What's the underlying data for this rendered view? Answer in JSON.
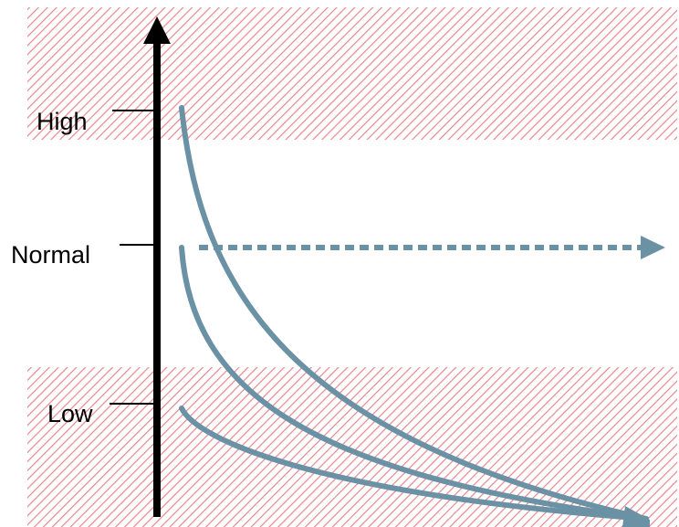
{
  "diagram": {
    "levels": [
      {
        "id": "high",
        "label": "High"
      },
      {
        "id": "normal",
        "label": "Normal"
      },
      {
        "id": "low",
        "label": "Low"
      }
    ],
    "colors": {
      "hatch": "#e8868f",
      "curve": "#6b91a5",
      "axis": "#000000"
    },
    "bands": {
      "upper": "hatched-red",
      "lower": "hatched-red"
    }
  }
}
